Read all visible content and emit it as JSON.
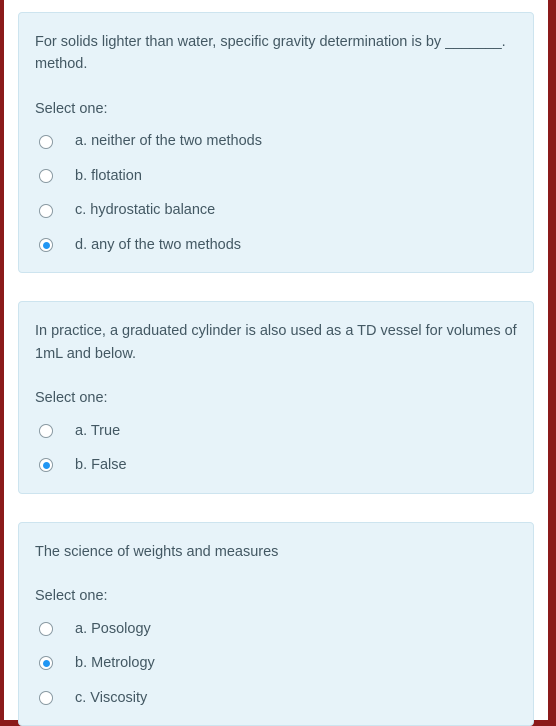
{
  "select_one_label": "Select one:",
  "questions": [
    {
      "text": "For solids lighter than water, specific gravity determination is by _______. method.",
      "options": [
        {
          "label": "a. neither of the two methods",
          "selected": false
        },
        {
          "label": "b. flotation",
          "selected": false
        },
        {
          "label": "c. hydrostatic balance",
          "selected": false
        },
        {
          "label": "d. any of the two methods",
          "selected": true
        }
      ]
    },
    {
      "text": "In practice, a graduated cylinder is also used as a TD vessel for volumes of 1mL and below.",
      "options": [
        {
          "label": "a. True",
          "selected": false
        },
        {
          "label": "b. False",
          "selected": true
        }
      ]
    },
    {
      "text": "The science of weights and measures",
      "options": [
        {
          "label": "a. Posology",
          "selected": false
        },
        {
          "label": "b. Metrology",
          "selected": true
        },
        {
          "label": "c. Viscosity",
          "selected": false
        }
      ]
    }
  ],
  "colors": {
    "page_bg": "#8b1a1a",
    "card_bg": "#e7f3f9",
    "card_border": "#cde4ef",
    "text": "#435863",
    "radio_border": "#8a9aa3",
    "radio_fill": "#2196f3"
  }
}
